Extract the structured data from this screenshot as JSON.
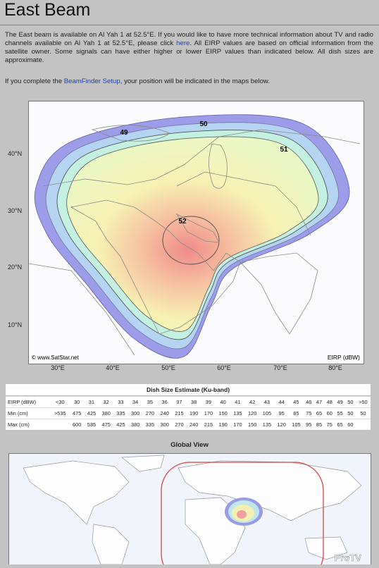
{
  "header": {
    "title": "East Beam"
  },
  "intro": {
    "before_link": "The East beam is available on Al Yah 1 at 52.5°E. If you would like to have more technical information about TV and radio channels available on Al Yah 1 at 52.5°E, please click ",
    "link": "here",
    "after_link": ". All EIRP values are based on official information from the satellite owner. Some signals can have either higher or lower EIRP values than indicated below. All dish sizes are approximate."
  },
  "setup_note": {
    "before_link": "If you complete the ",
    "link": "BeamFinder Setup",
    "after_link": ", your position will be indicated in the maps below."
  },
  "beam_map": {
    "contour_labels": [
      "49",
      "50",
      "51",
      "52"
    ],
    "credit": "© www.SatStar.net",
    "unit_label": "EIRP (dBW)",
    "lat_labels": [
      "40°N",
      "30°N",
      "20°N",
      "10°N"
    ],
    "lon_labels": [
      "30°E",
      "40°E",
      "50°E",
      "60°E",
      "70°E",
      "80°E"
    ]
  },
  "table": {
    "title": "Dish Size Estimate (Ku-band)",
    "rows": [
      [
        "EIRP (dBW)",
        "<30",
        "30",
        "31",
        "32",
        "33",
        "34",
        "35",
        "36",
        "37",
        "38",
        "39",
        "40",
        "41",
        "42",
        "43",
        "44",
        "45",
        "46",
        "47",
        "48",
        "49",
        "50",
        ">50"
      ],
      [
        "Min (cm)",
        ">535",
        "475",
        "425",
        "380",
        "335",
        "300",
        "270",
        "240",
        "215",
        "190",
        "170",
        "150",
        "135",
        "120",
        "105",
        "95",
        "85",
        "75",
        "65",
        "60",
        "55",
        "50",
        "50"
      ],
      [
        "Max (cm)",
        null,
        "600",
        "535",
        "475",
        "425",
        "380",
        "335",
        "300",
        "270",
        "240",
        "215",
        "190",
        "170",
        "150",
        "135",
        "120",
        "105",
        "95",
        "85",
        "75",
        "65",
        "60",
        null
      ]
    ]
  },
  "global_view": {
    "title": "Global View",
    "watermark": "ProTV"
  }
}
